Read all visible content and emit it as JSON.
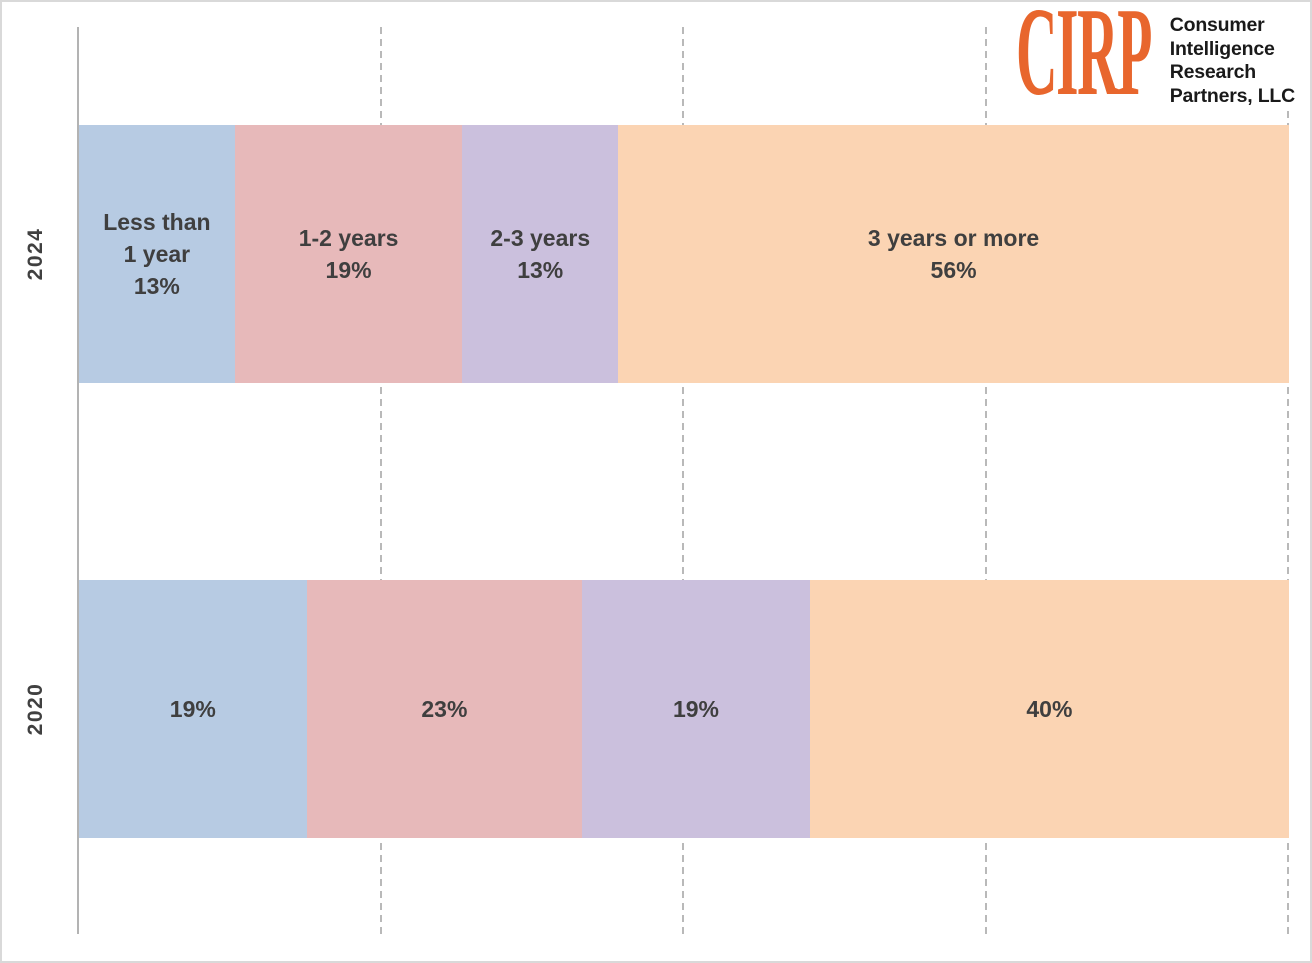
{
  "logo": {
    "abbr": "CIRP",
    "lines": [
      "Consumer",
      "Intelligence",
      "Research",
      "Partners, LLC"
    ],
    "accent_color": "#E8662D",
    "text_color": "#1A1A1A"
  },
  "chart_data": {
    "type": "bar",
    "subtype": "horizontal-stacked-100pct",
    "title": "",
    "categories": [
      "2024",
      "2020"
    ],
    "series": [
      {
        "name": "Less than 1 year",
        "color": "#B7CBE3",
        "values": [
          13,
          19
        ]
      },
      {
        "name": "1-2 years",
        "color": "#E7B9BA",
        "values": [
          19,
          23
        ]
      },
      {
        "name": "2-3 years",
        "color": "#CBC0DD",
        "values": [
          13,
          19
        ]
      },
      {
        "name": "3 years or more",
        "color": "#FBD4B3",
        "values": [
          56,
          40
        ]
      }
    ],
    "value_unit": "%",
    "xlim": [
      0,
      100
    ],
    "gridlines_pct": [
      25,
      50,
      75,
      100
    ],
    "grid_style": "dashed",
    "legend": "none",
    "data_label_color": "#3F3F3F",
    "axis_label_color": "#404040"
  },
  "bars": {
    "b2024": {
      "axis_label": "2024",
      "segs": [
        {
          "l1": "Less than",
          "l2": "1 year",
          "l3": "13%",
          "value": 13,
          "color": "#B7CBE3"
        },
        {
          "l1": "1-2 years",
          "l2": "19%",
          "value": 19,
          "color": "#E7B9BA"
        },
        {
          "l1": "2-3 years",
          "l2": "13%",
          "value": 13,
          "color": "#CBC0DD"
        },
        {
          "l1": "3 years or more",
          "l2": "56%",
          "value": 56,
          "color": "#FBD4B3"
        }
      ]
    },
    "b2020": {
      "axis_label": "2020",
      "segs": [
        {
          "l1": "19%",
          "value": 19,
          "color": "#B7CBE3"
        },
        {
          "l1": "23%",
          "value": 23,
          "color": "#E7B9BA"
        },
        {
          "l1": "19%",
          "value": 19,
          "color": "#CBC0DD"
        },
        {
          "l1": "40%",
          "value": 40,
          "color": "#FBD4B3"
        }
      ]
    }
  }
}
